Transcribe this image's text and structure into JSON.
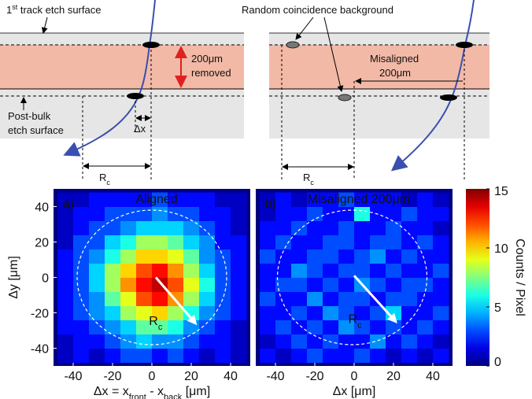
{
  "diagram": {
    "left": {
      "surface_label": [
        {
          "text": "1"
        },
        {
          "text": "st",
          "shift": "super"
        },
        {
          "text": " track etch surface"
        }
      ],
      "removed": [
        "200μm",
        "removed"
      ],
      "bulk_label": [
        "Post-bulk",
        "etch surface"
      ],
      "dx": "Δx",
      "rc": [
        {
          "text": "R"
        },
        {
          "text": "c",
          "shift": "sub"
        }
      ]
    },
    "right": {
      "background_label": "Random coincidence background",
      "misaligned": [
        "Misaligned",
        "200μm"
      ],
      "rc": [
        {
          "text": "R"
        },
        {
          "text": "c",
          "shift": "sub"
        }
      ]
    }
  },
  "colorbar": {
    "label": "Counts / Pixel",
    "colormap": "jet",
    "lim": [
      0,
      15
    ],
    "ticks": [
      0,
      5,
      10,
      15
    ]
  },
  "chart_data": [
    {
      "type": "heatmap",
      "panel_label": "a)",
      "annotation": "Aligned",
      "xlabel": [
        {
          "text": "Δx = x"
        },
        {
          "text": "front",
          "shift": "sub"
        },
        {
          "text": " - x"
        },
        {
          "text": "back",
          "shift": "sub"
        },
        {
          "text": " [μm]"
        }
      ],
      "ylabel": "Δy [μm]",
      "xlim": [
        -50,
        50
      ],
      "ylim": [
        -50,
        50
      ],
      "xticks": [
        -40,
        -20,
        0,
        20,
        40
      ],
      "yticks": [
        -40,
        -20,
        0,
        20,
        40
      ],
      "xbins": [
        -48,
        -40,
        -32,
        -24,
        -16,
        -8,
        0,
        8,
        16,
        24,
        32,
        40,
        48
      ],
      "ybins": [
        -48,
        -40,
        -32,
        -24,
        -16,
        -8,
        0,
        8,
        16,
        24,
        32,
        40,
        48
      ],
      "z": [
        [
          1,
          2,
          1,
          2,
          3,
          3,
          2,
          3,
          2,
          1,
          2,
          1
        ],
        [
          1,
          2,
          2,
          3,
          4,
          5,
          4,
          4,
          3,
          2,
          2,
          1
        ],
        [
          2,
          2,
          3,
          4,
          5,
          7,
          7,
          6,
          4,
          3,
          2,
          1
        ],
        [
          2,
          3,
          4,
          5,
          8,
          9,
          10,
          8,
          6,
          4,
          3,
          2
        ],
        [
          2,
          3,
          4,
          7,
          9,
          12,
          13,
          11,
          8,
          5,
          3,
          2
        ],
        [
          2,
          3,
          5,
          8,
          11,
          13,
          14,
          12,
          9,
          6,
          3,
          2
        ],
        [
          2,
          3,
          5,
          8,
          10,
          12,
          13,
          11,
          8,
          5,
          3,
          2
        ],
        [
          2,
          3,
          4,
          6,
          8,
          10,
          10,
          9,
          7,
          4,
          3,
          2
        ],
        [
          1,
          3,
          3,
          5,
          6,
          8,
          8,
          7,
          5,
          4,
          2,
          2
        ],
        [
          1,
          2,
          3,
          3,
          4,
          5,
          5,
          5,
          4,
          3,
          2,
          1
        ],
        [
          1,
          2,
          2,
          3,
          3,
          3,
          4,
          3,
          3,
          2,
          2,
          1
        ],
        [
          1,
          1,
          2,
          2,
          2,
          2,
          3,
          2,
          2,
          2,
          1,
          1
        ]
      ],
      "circle": {
        "center": [
          0,
          0
        ],
        "radius": 38
      },
      "arrow": {
        "from": [
          2,
          0
        ],
        "to": [
          23,
          -27
        ]
      },
      "circle_label": [
        {
          "text": "R"
        },
        {
          "text": "c",
          "shift": "sub"
        }
      ]
    },
    {
      "type": "heatmap",
      "panel_label": "b)",
      "annotation": "Misaligned 200μm",
      "xlabel": [
        {
          "text": "Δx [μm]"
        }
      ],
      "xlim": [
        -50,
        50
      ],
      "ylim": [
        -50,
        50
      ],
      "xticks": [
        -40,
        -20,
        0,
        20,
        40
      ],
      "xbins": [
        -48,
        -40,
        -32,
        -24,
        -16,
        -8,
        0,
        8,
        16,
        24,
        32,
        40,
        48
      ],
      "ybins": [
        -48,
        -40,
        -32,
        -24,
        -16,
        -8,
        0,
        8,
        16,
        24,
        32,
        40,
        48
      ],
      "z": [
        [
          2,
          1,
          2,
          3,
          2,
          2,
          3,
          2,
          1,
          2,
          1,
          2
        ],
        [
          1,
          2,
          3,
          2,
          3,
          2,
          2,
          4,
          2,
          3,
          2,
          1
        ],
        [
          2,
          3,
          2,
          3,
          2,
          4,
          3,
          2,
          3,
          2,
          3,
          2
        ],
        [
          2,
          2,
          3,
          2,
          4,
          3,
          2,
          3,
          5,
          2,
          2,
          3
        ],
        [
          3,
          2,
          2,
          4,
          2,
          3,
          3,
          2,
          3,
          3,
          2,
          2
        ],
        [
          2,
          3,
          3,
          2,
          3,
          2,
          4,
          3,
          2,
          3,
          3,
          2
        ],
        [
          2,
          2,
          4,
          3,
          2,
          3,
          3,
          2,
          3,
          2,
          2,
          3
        ],
        [
          3,
          2,
          2,
          3,
          3,
          2,
          3,
          4,
          2,
          3,
          2,
          2
        ],
        [
          2,
          3,
          2,
          2,
          3,
          3,
          2,
          3,
          3,
          2,
          3,
          2
        ],
        [
          2,
          2,
          3,
          2,
          2,
          3,
          2,
          2,
          3,
          2,
          2,
          1
        ],
        [
          1,
          2,
          2,
          3,
          2,
          2,
          6,
          2,
          2,
          3,
          2,
          2
        ],
        [
          1,
          2,
          1,
          2,
          2,
          3,
          2,
          2,
          2,
          1,
          2,
          1
        ]
      ],
      "circle": {
        "center": [
          -1,
          0
        ],
        "radius": 38
      },
      "arrow": {
        "from": [
          0,
          1
        ],
        "to": [
          22,
          -26
        ]
      },
      "circle_label": [
        {
          "text": "R"
        },
        {
          "text": "c",
          "shift": "sub"
        }
      ]
    }
  ]
}
